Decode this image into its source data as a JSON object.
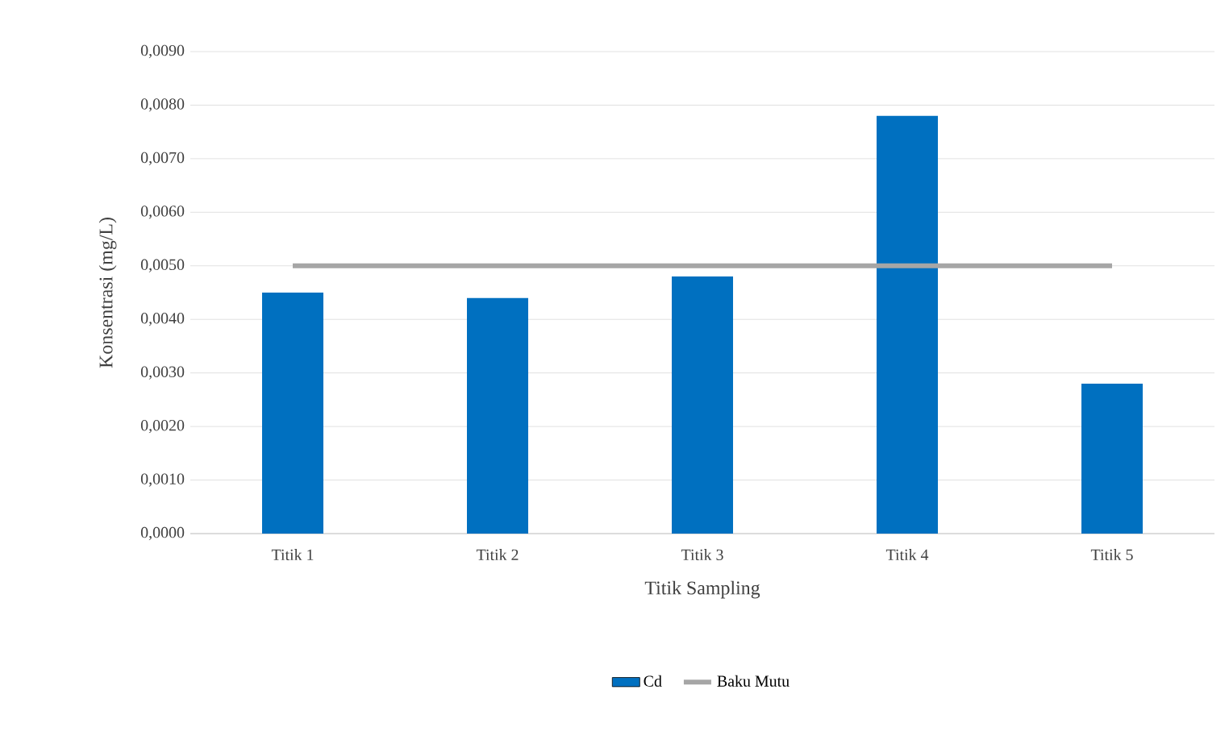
{
  "chart_data": {
    "type": "bar",
    "xlabel": "Titik Sampling",
    "ylabel": "Konsentrasi (mg/L)",
    "categories": [
      "Titik 1",
      "Titik 2",
      "Titik 3",
      "Titik 4",
      "Titik 5"
    ],
    "series": [
      {
        "name": "Cd",
        "color": "#0070c0",
        "values": [
          0.0045,
          0.0044,
          0.0048,
          0.0078,
          0.0028
        ]
      },
      {
        "name": "Baku Mutu",
        "type": "line",
        "color": "#a6a6a6",
        "values": [
          0.005,
          0.005,
          0.005,
          0.005,
          0.005
        ]
      }
    ],
    "ylim": [
      0,
      0.009
    ],
    "yticks": [
      {
        "value": 0,
        "label": "0,0000"
      },
      {
        "value": 0.001,
        "label": "0,0010"
      },
      {
        "value": 0.002,
        "label": "0,0020"
      },
      {
        "value": 0.003,
        "label": "0,0030"
      },
      {
        "value": 0.004,
        "label": "0,0040"
      },
      {
        "value": 0.005,
        "label": "0,0050"
      },
      {
        "value": 0.006,
        "label": "0,0060"
      },
      {
        "value": 0.007,
        "label": "0,0070"
      },
      {
        "value": 0.008,
        "label": "0,0080"
      },
      {
        "value": 0.009,
        "label": "0,0090"
      }
    ],
    "grid": "y",
    "legend": "bottom"
  }
}
